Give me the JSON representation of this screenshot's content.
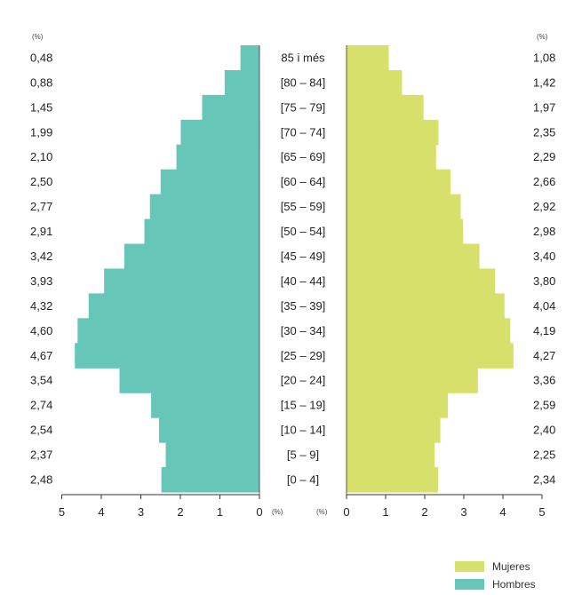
{
  "chart_data": {
    "type": "bar",
    "orientation": "horizontal-population-pyramid",
    "categories": [
      "85 i més",
      "[80 – 84]",
      "[75 – 79]",
      "[70 – 74]",
      "[65 – 69]",
      "[60 – 64]",
      "[55 – 59]",
      "[50 – 54]",
      "[45 – 49]",
      "[40 – 44]",
      "[35 – 39]",
      "[30 – 34]",
      "[25 – 29]",
      "[20 – 24]",
      "[15 – 19]",
      "[10 – 14]",
      "[5 – 9]",
      "[0 – 4]"
    ],
    "series": [
      {
        "name": "Hombres",
        "side": "left",
        "color": "#66c7b8",
        "values": [
          0.48,
          0.88,
          1.45,
          1.99,
          2.1,
          2.5,
          2.77,
          2.91,
          3.42,
          3.93,
          4.32,
          4.6,
          4.67,
          3.54,
          2.74,
          2.54,
          2.37,
          2.48
        ],
        "value_labels": [
          "0,48",
          "0,88",
          "1,45",
          "1,99",
          "2,10",
          "2,50",
          "2,77",
          "2,91",
          "3,42",
          "3,93",
          "4,32",
          "4,60",
          "4,67",
          "3,54",
          "2,74",
          "2,54",
          "2,37",
          "2,48"
        ]
      },
      {
        "name": "Mujeres",
        "side": "right",
        "color": "#d6e06a",
        "values": [
          1.08,
          1.42,
          1.97,
          2.35,
          2.29,
          2.66,
          2.92,
          2.98,
          3.4,
          3.8,
          4.04,
          4.19,
          4.27,
          3.36,
          2.59,
          2.4,
          2.25,
          2.34
        ],
        "value_labels": [
          "1,08",
          "1,42",
          "1,97",
          "2,35",
          "2,29",
          "2,66",
          "2,92",
          "2,98",
          "3,40",
          "3,80",
          "4,04",
          "4,19",
          "4,27",
          "3,36",
          "2,59",
          "2,40",
          "2,25",
          "2,34"
        ]
      }
    ],
    "left_axis": {
      "ticks": [
        "5",
        "4",
        "3",
        "2",
        "1",
        "0"
      ],
      "tick_values": [
        5,
        4,
        3,
        2,
        1,
        0
      ],
      "unit_label": "(%)",
      "range": [
        0,
        5
      ],
      "reversed": true
    },
    "right_axis": {
      "ticks": [
        "0",
        "1",
        "2",
        "3",
        "4",
        "5"
      ],
      "tick_values": [
        0,
        1,
        2,
        3,
        4,
        5
      ],
      "unit_label": "(%)",
      "range": [
        0,
        5
      ]
    },
    "left_value_unit": "(%)",
    "right_value_unit": "(%)",
    "grid": false,
    "legend": {
      "placement": "bottom-right",
      "items": [
        {
          "label": "Mujeres",
          "color": "#d6e06a"
        },
        {
          "label": "Hombres",
          "color": "#66c7b8"
        }
      ]
    }
  }
}
